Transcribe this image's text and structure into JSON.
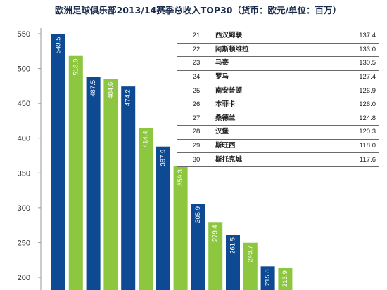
{
  "chart_data": {
    "type": "bar",
    "title": "欧洲足球俱乐部2013/14赛季总收入TOP30（货币：欧元/单位：百万）",
    "ylim": [
      200,
      555
    ],
    "yticks": [
      200,
      250,
      300,
      350,
      400,
      450,
      500,
      550
    ],
    "grid": false,
    "values": [
      549.5,
      518.0,
      487.5,
      484.6,
      474.2,
      414.4,
      387.9,
      359.3,
      305.9,
      279.4,
      261.5,
      249.7,
      215.8,
      213.9
    ],
    "value_labels": [
      "549.5",
      "518.0",
      "487.5",
      "484.6",
      "474.2",
      "414.4",
      "387.9",
      "359.3",
      "305.9",
      "279.4",
      "261.5",
      "249.7",
      "215.8",
      "213.9"
    ],
    "colors": [
      "#0d4a93",
      "#8dc63f"
    ],
    "inset_table": {
      "rows": [
        {
          "rank": "21",
          "club": "西汉姆联",
          "revenue": "137.4"
        },
        {
          "rank": "22",
          "club": "阿斯顿维拉",
          "revenue": "133.0"
        },
        {
          "rank": "23",
          "club": "马赛",
          "revenue": "130.5"
        },
        {
          "rank": "24",
          "club": "罗马",
          "revenue": "127.4"
        },
        {
          "rank": "25",
          "club": "南安普顿",
          "revenue": "126.9"
        },
        {
          "rank": "26",
          "club": "本菲卡",
          "revenue": "126.0"
        },
        {
          "rank": "27",
          "club": "桑德兰",
          "revenue": "124.8"
        },
        {
          "rank": "28",
          "club": "汉堡",
          "revenue": "120.3"
        },
        {
          "rank": "29",
          "club": "斯旺西",
          "revenue": "118.0"
        },
        {
          "rank": "30",
          "club": "斯托克城",
          "revenue": "117.6"
        }
      ]
    }
  }
}
